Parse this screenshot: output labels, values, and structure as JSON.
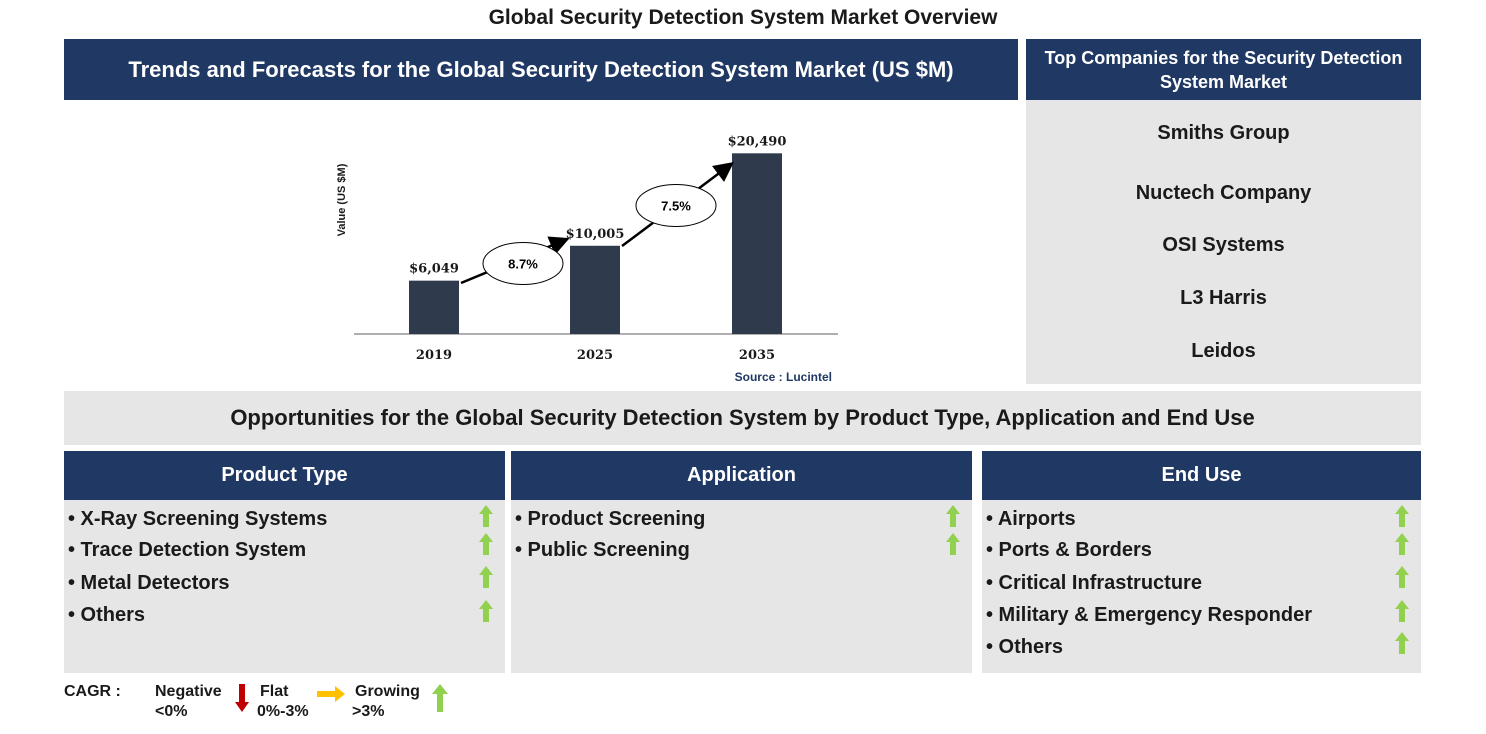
{
  "title": "Global Security Detection System Market Overview",
  "trend_header": "Trends and Forecasts for the Global Security Detection System Market (US $M)",
  "companies": {
    "header": "Top Companies for the Security Detection System Market",
    "items": [
      "Smiths Group",
      "Nuctech Company",
      "OSI Systems",
      "L3 Harris",
      "Leidos"
    ]
  },
  "chart_data": {
    "type": "bar",
    "categories": [
      "2019",
      "2025",
      "2035"
    ],
    "values": [
      6049,
      10005,
      20490
    ],
    "value_labels": [
      "$6,049",
      "$10,005",
      "$20,490"
    ],
    "ylabel": "Value (US $M)",
    "ylim": [
      0,
      22000
    ],
    "cagr": [
      {
        "from": "2019",
        "to": "2025",
        "label": "8.7%"
      },
      {
        "from": "2025",
        "to": "2035",
        "label": "7.5%"
      }
    ],
    "source": "Source : Lucintel",
    "bar_color": "#2f3a4d"
  },
  "opportunities_title": "Opportunities for the Global Security Detection System by Product Type, Application and End Use",
  "segments": [
    {
      "header": "Product Type",
      "items": [
        "• X-Ray Screening Systems",
        "• Trace Detection System",
        "• Metal Detectors",
        "• Others"
      ]
    },
    {
      "header": "Application",
      "items": [
        "• Product Screening",
        "• Public Screening"
      ]
    },
    {
      "header": "End Use",
      "items": [
        "• Airports",
        "• Ports & Borders",
        "• Critical Infrastructure",
        "• Military & Emergency Responder",
        "• Others"
      ]
    }
  ],
  "legend": {
    "label": "CAGR :",
    "negative": {
      "name": "Negative",
      "range": "<0%"
    },
    "flat": {
      "name": "Flat",
      "range": "0%-3%"
    },
    "growing": {
      "name": "Growing",
      "range": ">3%"
    }
  },
  "colors": {
    "navy": "#203864",
    "grey": "#e6e6e6",
    "up_green": "#92d050",
    "down_red": "#c00000",
    "flat_yellow": "#ffc000"
  }
}
